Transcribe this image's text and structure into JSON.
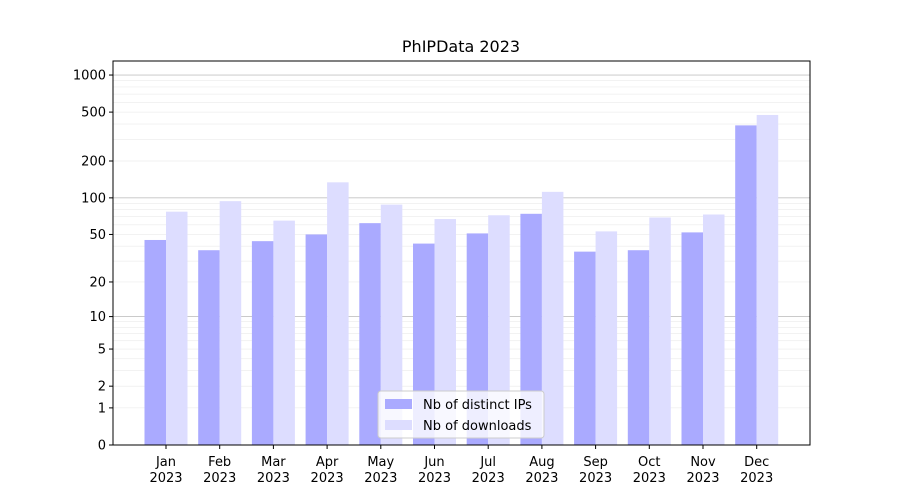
{
  "chart_data": {
    "type": "bar",
    "title": "PhIPData 2023",
    "xlabel": "",
    "ylabel": "",
    "yscale": "log1p",
    "ylim": [
      0,
      1300
    ],
    "grid": true,
    "legend_position": "lower center",
    "categories": [
      [
        "Jan",
        "2023"
      ],
      [
        "Feb",
        "2023"
      ],
      [
        "Mar",
        "2023"
      ],
      [
        "Apr",
        "2023"
      ],
      [
        "May",
        "2023"
      ],
      [
        "Jun",
        "2023"
      ],
      [
        "Jul",
        "2023"
      ],
      [
        "Aug",
        "2023"
      ],
      [
        "Sep",
        "2023"
      ],
      [
        "Oct",
        "2023"
      ],
      [
        "Nov",
        "2023"
      ],
      [
        "Dec",
        "2023"
      ]
    ],
    "yticks": [
      "0",
      "1",
      "2",
      "5",
      "10",
      "20",
      "50",
      "100",
      "200",
      "500",
      "1000"
    ],
    "series": [
      {
        "name": "Nb of distinct IPs",
        "color": "#aaaaff",
        "values": [
          45,
          37,
          44,
          50,
          62,
          42,
          51,
          74,
          36,
          37,
          52,
          390
        ]
      },
      {
        "name": "Nb of downloads",
        "color": "#ddddff",
        "values": [
          77,
          94,
          65,
          134,
          88,
          67,
          72,
          112,
          53,
          69,
          73,
          474
        ]
      }
    ]
  }
}
